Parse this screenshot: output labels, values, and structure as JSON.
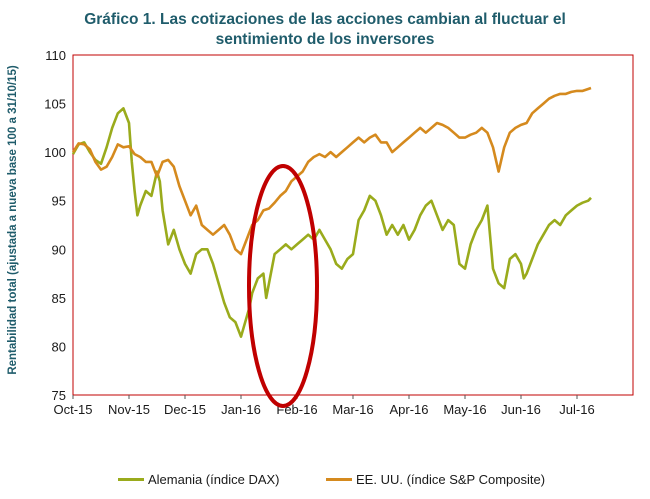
{
  "chart_data": {
    "type": "line",
    "title_line1": "Gráfico 1. Las cotizaciones de las acciones cambian al fluctuar el",
    "title_line2": "sentimiento de los inversores",
    "ylabel": "Rentabilidad  total (ajustada a nueva base 100 a 31/10/15)",
    "ylim": [
      75,
      110
    ],
    "yticks": [
      "75",
      "80",
      "85",
      "90",
      "95",
      "100",
      "105",
      "110"
    ],
    "xlim": [
      0,
      10
    ],
    "xticks": [
      "Oct-15",
      "Nov-15",
      "Dec-15",
      "Jan-16",
      "Feb-16",
      "Mar-16",
      "Apr-16",
      "May-16",
      "Jun-16",
      "Jul-16"
    ],
    "legend_position": "bottom",
    "annotation": "red ellipse highlighting Jan-16 to Feb-16",
    "annotation_color": "#c00000",
    "frame_color": "#c00000",
    "series": [
      {
        "name": "Alemania (índice DAX)",
        "color": "#9aab1c",
        "x": [
          0.0,
          0.1,
          0.2,
          0.3,
          0.4,
          0.5,
          0.6,
          0.7,
          0.8,
          0.9,
          1.0,
          1.05,
          1.1,
          1.15,
          1.2,
          1.3,
          1.4,
          1.5,
          1.55,
          1.6,
          1.7,
          1.8,
          1.9,
          2.0,
          2.1,
          2.2,
          2.3,
          2.4,
          2.5,
          2.6,
          2.7,
          2.8,
          2.9,
          3.0,
          3.1,
          3.15,
          3.2,
          3.3,
          3.4,
          3.45,
          3.5,
          3.6,
          3.7,
          3.8,
          3.9,
          4.0,
          4.1,
          4.2,
          4.3,
          4.4,
          4.5,
          4.6,
          4.7,
          4.8,
          4.9,
          5.0,
          5.1,
          5.2,
          5.3,
          5.4,
          5.5,
          5.6,
          5.7,
          5.8,
          5.9,
          6.0,
          6.1,
          6.2,
          6.3,
          6.4,
          6.5,
          6.6,
          6.7,
          6.8,
          6.9,
          7.0,
          7.1,
          7.2,
          7.3,
          7.4,
          7.5,
          7.6,
          7.7,
          7.8,
          7.9,
          8.0,
          8.05,
          8.1,
          8.2,
          8.3,
          8.4,
          8.5,
          8.6,
          8.7,
          8.8,
          8.9,
          9.0,
          9.1,
          9.2,
          9.25
        ],
        "values": [
          99.8,
          100.8,
          101.0,
          100.0,
          99.2,
          98.8,
          100.5,
          102.5,
          104.0,
          104.5,
          103.0,
          99.0,
          96.0,
          93.5,
          94.5,
          96.0,
          95.5,
          98.0,
          97.0,
          94.0,
          90.5,
          92.0,
          90.0,
          88.5,
          87.5,
          89.5,
          90.0,
          90.0,
          88.5,
          86.5,
          84.5,
          83.0,
          82.5,
          81.0,
          83.0,
          84.0,
          85.5,
          87.0,
          87.5,
          85.0,
          86.5,
          89.5,
          90.0,
          90.5,
          90.0,
          90.5,
          91.0,
          91.5,
          91.0,
          92.0,
          91.0,
          90.0,
          88.5,
          88.0,
          89.0,
          89.5,
          93.0,
          94.0,
          95.5,
          95.0,
          93.5,
          91.5,
          92.5,
          91.5,
          92.5,
          91.0,
          92.0,
          93.5,
          94.5,
          95.0,
          93.5,
          92.0,
          93.0,
          92.5,
          88.5,
          88.0,
          90.5,
          92.0,
          93.0,
          94.5,
          88.0,
          86.5,
          86.0,
          89.0,
          89.5,
          88.5,
          87.0,
          87.5,
          89.0,
          90.5,
          91.5,
          92.5,
          93.0,
          92.5,
          93.5,
          94.0,
          94.5,
          94.8,
          95.0,
          95.3
        ]
      },
      {
        "name": "EE. UU. (índice S&P Composite)",
        "color": "#d58a1e",
        "x": [
          0.0,
          0.1,
          0.2,
          0.3,
          0.4,
          0.5,
          0.6,
          0.7,
          0.8,
          0.9,
          1.0,
          1.1,
          1.2,
          1.3,
          1.4,
          1.5,
          1.6,
          1.7,
          1.8,
          1.9,
          2.0,
          2.1,
          2.2,
          2.3,
          2.4,
          2.5,
          2.6,
          2.7,
          2.8,
          2.9,
          3.0,
          3.1,
          3.2,
          3.3,
          3.4,
          3.5,
          3.6,
          3.7,
          3.8,
          3.9,
          4.0,
          4.1,
          4.2,
          4.3,
          4.4,
          4.5,
          4.6,
          4.7,
          4.8,
          4.9,
          5.0,
          5.1,
          5.2,
          5.3,
          5.4,
          5.5,
          5.6,
          5.7,
          5.8,
          5.9,
          6.0,
          6.1,
          6.2,
          6.3,
          6.4,
          6.5,
          6.6,
          6.7,
          6.8,
          6.9,
          7.0,
          7.1,
          7.2,
          7.3,
          7.4,
          7.5,
          7.6,
          7.7,
          7.8,
          7.9,
          8.0,
          8.1,
          8.2,
          8.3,
          8.4,
          8.5,
          8.6,
          8.7,
          8.8,
          8.9,
          9.0,
          9.1,
          9.2,
          9.25
        ],
        "values": [
          100.0,
          100.9,
          100.8,
          100.3,
          99.0,
          98.2,
          98.5,
          99.5,
          100.8,
          100.5,
          100.6,
          99.8,
          99.5,
          99.0,
          99.0,
          97.5,
          99.0,
          99.2,
          98.5,
          96.5,
          95.0,
          93.5,
          94.5,
          92.5,
          92.0,
          91.5,
          92.0,
          92.5,
          91.5,
          90.0,
          89.5,
          91.0,
          92.5,
          93.0,
          94.0,
          94.2,
          94.8,
          95.5,
          96.0,
          97.0,
          97.5,
          98.0,
          99.0,
          99.5,
          99.8,
          99.5,
          100.0,
          99.5,
          100.0,
          100.5,
          101.0,
          101.5,
          101.0,
          101.5,
          101.8,
          101.0,
          101.0,
          100.0,
          100.5,
          101.0,
          101.5,
          102.0,
          102.5,
          102.0,
          102.5,
          103.0,
          102.8,
          102.5,
          102.0,
          101.5,
          101.5,
          101.8,
          102.0,
          102.5,
          102.0,
          100.5,
          98.0,
          100.5,
          102.0,
          102.5,
          102.8,
          103.0,
          104.0,
          104.5,
          105.0,
          105.5,
          105.8,
          106.0,
          106.0,
          106.2,
          106.3,
          106.3,
          106.5,
          106.6
        ]
      }
    ]
  }
}
